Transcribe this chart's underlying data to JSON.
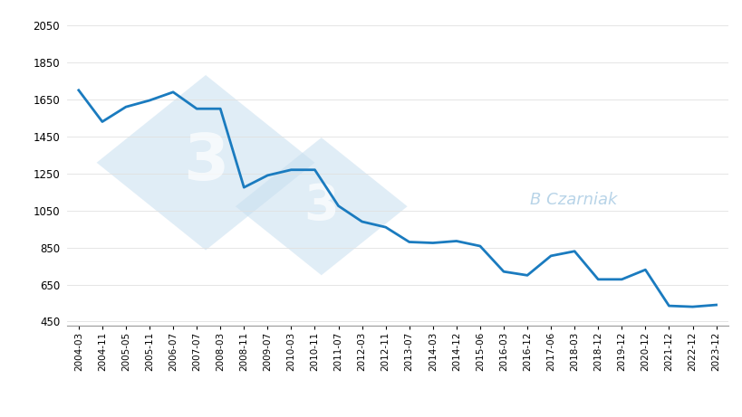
{
  "x_labels_full": [
    "2004-03",
    "2004-11",
    "2005-05",
    "2005-11",
    "2006-07",
    "2007-07",
    "2008-03",
    "2008-11",
    "2009-07",
    "2010-03",
    "2010-11",
    "2011-07",
    "2012-03",
    "2012-11",
    "2013-07",
    "2014-03",
    "2014-12",
    "2015-06",
    "2016-03",
    "2016-12",
    "2017-06",
    "2018-03",
    "2018-12",
    "2019-12",
    "2020-12",
    "2021-12",
    "2022-12",
    "2023-12"
  ],
  "y_values_full": [
    1700,
    1530,
    1610,
    1645,
    1690,
    1600,
    1600,
    1175,
    1240,
    1270,
    1270,
    1075,
    990,
    960,
    880,
    875,
    885,
    858,
    720,
    700,
    805,
    830,
    678,
    678,
    730,
    535,
    530,
    540
  ],
  "shown_labels": [
    "2004-03",
    "2004-11",
    "2005-05",
    "2005-11",
    "2006-07",
    "2007-07",
    "2008-03",
    "2008-11",
    "2009-07",
    "2010-03",
    "2010-11",
    "2011-07",
    "2012-03",
    "2012-11",
    "2013-07",
    "2014-03",
    "2014-12",
    "2015-06",
    "2016-03",
    "2016-12",
    "2017-06",
    "2018-03",
    "2018-12",
    "2019-12",
    "2020-12",
    "2021-12",
    "2022-12",
    "2023-12"
  ],
  "line_color": "#1a7bbf",
  "line_width": 2.0,
  "yticks": [
    450,
    650,
    850,
    1050,
    1250,
    1450,
    1650,
    1850,
    2050
  ],
  "ylim": [
    430,
    2120
  ],
  "bg_color": "#ffffff",
  "watermark_text": "B Czarniak",
  "watermark_color": "#b8d4e8",
  "watermark_fontsize": 13,
  "diamond_color": "#c8dff0",
  "diamond_alpha": 0.5
}
